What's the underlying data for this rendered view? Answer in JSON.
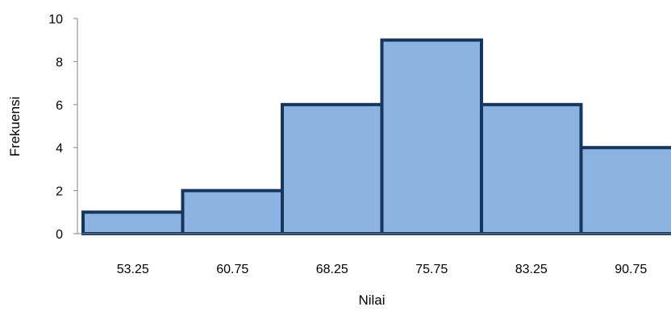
{
  "chart_data": {
    "type": "bar",
    "categories": [
      "53.25",
      "60.75",
      "68.25",
      "75.75",
      "83.25",
      "90.75"
    ],
    "values": [
      1,
      2,
      6,
      9,
      6,
      4
    ],
    "xlabel": "Nilai",
    "ylabel": "Frekuensi",
    "ylim": [
      0,
      10
    ],
    "yticks": [
      0,
      2,
      4,
      6,
      8,
      10
    ],
    "grid": false,
    "bar_fill": "#8DB3E2",
    "bar_stroke": "#17365D"
  }
}
